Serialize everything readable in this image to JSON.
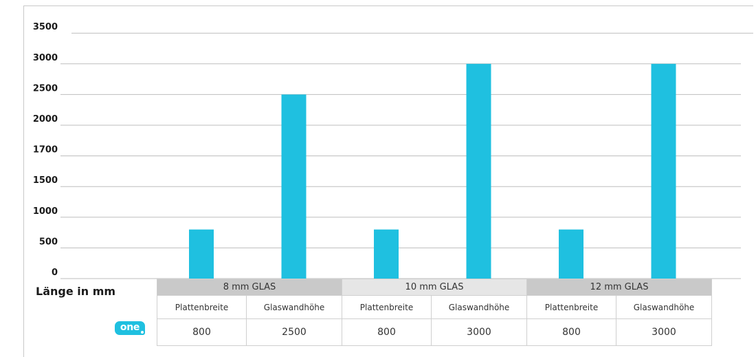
{
  "chart_data": {
    "type": "bar",
    "ytick_labels": [
      "0",
      "500",
      "1000",
      "1500",
      "1700",
      "2000",
      "2500",
      "3000",
      "3500"
    ],
    "ylabel": "Länge in mm",
    "groups": [
      {
        "name": "8 mm GLAS",
        "categories": [
          "Plattenbreite",
          "Glaswandhöhe"
        ],
        "values": [
          800,
          2500
        ]
      },
      {
        "name": "10 mm GLAS",
        "categories": [
          "Plattenbreite",
          "Glaswandhöhe"
        ],
        "values": [
          800,
          3000
        ]
      },
      {
        "name": "12 mm GLAS",
        "categories": [
          "Plattenbreite",
          "Glaswandhöhe"
        ],
        "values": [
          800,
          3000
        ]
      }
    ],
    "grid": true,
    "bar_color": "#1fc0e0"
  },
  "logo_text": "one",
  "colors": {
    "bar": "#1fc0e0",
    "grid": "#bdbdbd"
  }
}
